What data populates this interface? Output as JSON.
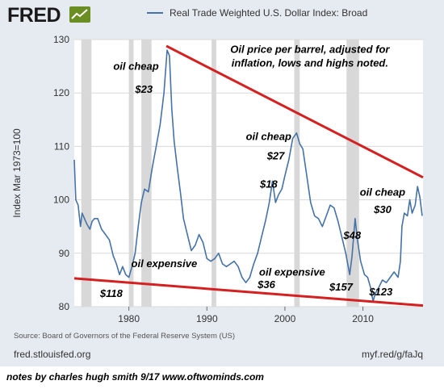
{
  "header": {
    "logo_text": "FRED",
    "legend_label": "Real Trade Weighted U.S. Dollar Index: Broad",
    "series_color": "#4572a7",
    "trend_color": "#d42020",
    "recession_color": "#d8d8d8"
  },
  "footer": {
    "source": "Source: Board of Governors of the Federal Reserve System (US)",
    "site": "fred.stlouisfed.org",
    "permalink": "myf.red/g/faJq",
    "notes": "notes by charles hugh smith     9/17     www.oftwominds.com"
  },
  "chart_data": {
    "type": "line",
    "title": "",
    "xlabel": "",
    "ylabel": "Index Mar 1973=100",
    "xlim": [
      1973,
      2017.7
    ],
    "ylim": [
      80,
      130
    ],
    "x_ticks": [
      "1980",
      "1990",
      "2000",
      "2010"
    ],
    "y_ticks": [
      "80",
      "90",
      "100",
      "110",
      "120",
      "130"
    ],
    "grid": true,
    "legend": "top",
    "recessions": [
      [
        1973.9,
        1975.2
      ],
      [
        1980.0,
        1980.6
      ],
      [
        1981.6,
        1982.9
      ],
      [
        1990.6,
        1991.2
      ],
      [
        2001.2,
        2001.9
      ],
      [
        2007.9,
        2009.5
      ]
    ],
    "series": [
      {
        "name": "Real Trade Weighted U.S. Dollar Index: Broad",
        "x": [
          1973.0,
          1973.2,
          1973.5,
          1973.8,
          1974.0,
          1974.3,
          1974.6,
          1975.0,
          1975.3,
          1975.6,
          1976.0,
          1976.5,
          1977.0,
          1977.5,
          1978.0,
          1978.4,
          1978.8,
          1979.2,
          1979.6,
          1980.0,
          1980.4,
          1980.8,
          1981.2,
          1981.6,
          1982.0,
          1982.5,
          1983.0,
          1983.5,
          1984.0,
          1984.5,
          1984.9,
          1985.2,
          1985.5,
          1985.8,
          1986.2,
          1986.6,
          1987.0,
          1987.5,
          1988.0,
          1988.5,
          1989.0,
          1989.5,
          1990.0,
          1990.5,
          1991.0,
          1991.5,
          1992.0,
          1992.5,
          1993.0,
          1993.5,
          1994.0,
          1994.5,
          1995.0,
          1995.5,
          1996.0,
          1996.5,
          1997.0,
          1997.5,
          1998.0,
          1998.4,
          1998.8,
          1999.2,
          1999.6,
          2000.0,
          2000.5,
          2001.0,
          2001.5,
          2001.9,
          2002.3,
          2002.8,
          2003.3,
          2003.8,
          2004.3,
          2004.8,
          2005.3,
          2005.8,
          2006.3,
          2006.8,
          2007.3,
          2007.8,
          2008.3,
          2008.6,
          2009.0,
          2009.3,
          2009.7,
          2010.2,
          2010.6,
          2011.0,
          2011.3,
          2011.6,
          2012.0,
          2012.5,
          2013.0,
          2013.5,
          2014.0,
          2014.5,
          2014.8,
          2015.0,
          2015.3,
          2015.7,
          2016.0,
          2016.3,
          2016.7,
          2017.0,
          2017.3,
          2017.6
        ],
        "values": [
          107.5,
          100.0,
          99.0,
          95.0,
          97.5,
          96.5,
          95.5,
          94.5,
          96.0,
          96.5,
          96.5,
          94.5,
          93.5,
          92.5,
          89.5,
          88.0,
          86.0,
          87.5,
          86.0,
          85.5,
          87.5,
          90.0,
          95.0,
          99.5,
          102.0,
          101.5,
          106.0,
          110.0,
          114.0,
          120.0,
          128.0,
          127.0,
          117.0,
          111.0,
          106.0,
          101.5,
          96.5,
          93.5,
          90.5,
          91.5,
          93.5,
          92.0,
          89.0,
          88.5,
          89.0,
          90.0,
          88.0,
          87.5,
          88.0,
          88.5,
          87.5,
          85.5,
          84.5,
          85.5,
          88.0,
          90.0,
          93.0,
          96.0,
          99.5,
          103.5,
          99.5,
          101.0,
          102.0,
          104.5,
          107.5,
          111.5,
          112.5,
          110.5,
          109.5,
          104.5,
          99.5,
          97.0,
          96.5,
          95.0,
          97.0,
          99.0,
          98.5,
          96.0,
          93.0,
          90.0,
          86.0,
          89.5,
          96.5,
          92.5,
          88.5,
          86.0,
          85.5,
          83.5,
          81.0,
          82.5,
          83.5,
          85.0,
          84.5,
          85.5,
          86.5,
          85.5,
          88.5,
          95.0,
          97.5,
          97.0,
          100.0,
          97.5,
          99.0,
          102.5,
          100.5,
          97.0
        ]
      }
    ],
    "trendlines": [
      {
        "x": [
          1973.0,
          2017.7
        ],
        "y": [
          85.3,
          80.2
        ]
      },
      {
        "x": [
          1984.8,
          2017.7
        ],
        "y": [
          128.8,
          104.2
        ]
      }
    ],
    "annotations": [
      {
        "id": "note",
        "lines": [
          "Oil price per barrel, adjusted for",
          "inflation, lows and highs noted."
        ],
        "at": [
          2003.2,
          127.5
        ]
      },
      {
        "id": "cheap-1",
        "lines": [
          "oil cheap"
        ],
        "at": [
          1978.0,
          124.3
        ]
      },
      {
        "id": "price-23",
        "lines": [
          "$23"
        ],
        "at": [
          1980.8,
          120.0
        ]
      },
      {
        "id": "cheap-2",
        "lines": [
          "oil cheap"
        ],
        "at": [
          1995.0,
          111.2
        ]
      },
      {
        "id": "price-27",
        "lines": [
          "$27"
        ],
        "at": [
          1997.7,
          107.6
        ]
      },
      {
        "id": "price-18",
        "lines": [
          "$18"
        ],
        "at": [
          1996.8,
          102.3
        ]
      },
      {
        "id": "cheap-3",
        "lines": [
          "oil cheap"
        ],
        "at": [
          2009.6,
          100.8
        ]
      },
      {
        "id": "price-30",
        "lines": [
          "$30"
        ],
        "at": [
          2011.4,
          97.5
        ]
      },
      {
        "id": "price-48",
        "lines": [
          "$48"
        ],
        "at": [
          2007.5,
          92.7
        ]
      },
      {
        "id": "expensive-1",
        "lines": [
          "oil expensive"
        ],
        "at": [
          1980.3,
          87.4
        ]
      },
      {
        "id": "price-118",
        "lines": [
          "$118"
        ],
        "at": [
          1976.3,
          81.8
        ]
      },
      {
        "id": "expensive-2",
        "lines": [
          "oil expensive"
        ],
        "at": [
          1996.7,
          85.8
        ]
      },
      {
        "id": "price-36",
        "lines": [
          "$36"
        ],
        "at": [
          1996.5,
          83.5
        ]
      },
      {
        "id": "price-157",
        "lines": [
          "$157"
        ],
        "at": [
          2005.7,
          83.0
        ]
      },
      {
        "id": "price-123",
        "lines": [
          "$123"
        ],
        "at": [
          2010.8,
          82.1
        ]
      }
    ]
  }
}
